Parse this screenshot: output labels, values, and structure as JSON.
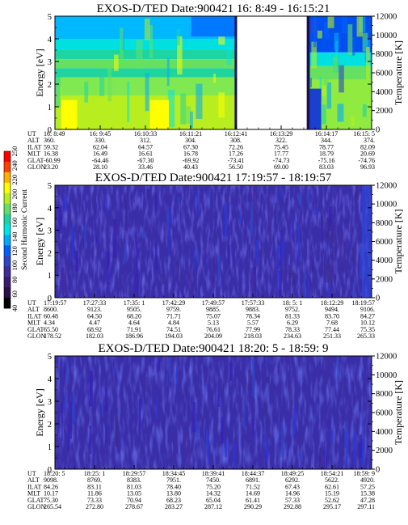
{
  "colors": {
    "gap": "#ffffff",
    "axis": "#000000",
    "scale": [
      "#000000",
      "#2a0f48",
      "#3d1a6e",
      "#3c2d9a",
      "#2f45c8",
      "#0060ff",
      "#00a8ff",
      "#00e4e4",
      "#20d4a0",
      "#66e060",
      "#b8ee20",
      "#ffff00",
      "#ffb000",
      "#ff4000",
      "#ff0000"
    ]
  },
  "colorbar": {
    "label": "Second Harmonic Current",
    "ticks": [
      "40",
      "60",
      "80",
      "100",
      "120",
      "140",
      "160",
      "180",
      "200",
      "220",
      "240",
      "250"
    ]
  },
  "chart_data": [
    {
      "type": "heatmap",
      "title": "EXOS-D/TED   Date:900421   16: 8:49 - 16:15:21",
      "ylabel": "Energy [eV]",
      "ylim": [
        0,
        5
      ],
      "yticks": [
        "0",
        "1",
        "2",
        "3",
        "4",
        "5"
      ],
      "y2label": "Temperature [K]",
      "y2lim": [
        0,
        12000
      ],
      "y2ticks": [
        "0",
        "2000",
        "4000",
        "6000",
        "8000",
        "10000",
        "12000"
      ],
      "data_gap": [
        0.575,
        0.795
      ],
      "ephemeris": {
        "row_labels": [
          "UT",
          "ALT",
          "ILAT",
          "MLT",
          "GLAT",
          "GLON"
        ],
        "columns": [
          [
            "16: 8:49",
            "360.",
            "59.32",
            "16.38",
            "-60.99",
            "23.20"
          ],
          [
            "16: 9:45",
            "330.",
            "62.04",
            "16.49",
            "-64.46",
            "28.10"
          ],
          [
            "16:10:33",
            "312.",
            "64.57",
            "16.61",
            "-67.30",
            "33.46"
          ],
          [
            "16:11:21",
            "304.",
            "67.30",
            "16.78",
            "-69.92",
            "40.43"
          ],
          [
            "16:12:41",
            "308.",
            "72.26",
            "17.26",
            "-73.41",
            "56.50"
          ],
          [
            "16:13:29",
            "322.",
            "75.45",
            "17.77",
            "-74.73",
            "69.00"
          ],
          [
            "16:14:17",
            "344.",
            "78.77",
            "18.79",
            "-75.16",
            "83.03"
          ],
          [
            "16:15: 5",
            "374.",
            "82.09",
            "20.69",
            "-74.76",
            "96.93"
          ]
        ]
      }
    },
    {
      "type": "heatmap",
      "title": "EXOS-D/TED   Date:900421   17:19:57 - 18:19:57",
      "ylabel": "Energy [eV]",
      "ylim": [
        0,
        5
      ],
      "yticks": [
        "0",
        "1",
        "2",
        "3",
        "4",
        "5"
      ],
      "y2label": "Temperature [K]",
      "y2lim": [
        0,
        12000
      ],
      "y2ticks": [
        "0",
        "2000",
        "4000",
        "6000",
        "8000",
        "10000",
        "12000"
      ],
      "ephemeris": {
        "row_labels": [
          "UT",
          "ALT",
          "ILAT",
          "MLT",
          "GLAT",
          "GLON"
        ],
        "columns": [
          [
            "17:19:57",
            "8600.",
            "60.48",
            "4.34",
            "65.50",
            "178.52"
          ],
          [
            "17:27:33",
            "9123.",
            "64.50",
            "4.47",
            "68.92",
            "182.03"
          ],
          [
            "17:35: 1",
            "9505.",
            "68.20",
            "4.64",
            "71.91",
            "186.96"
          ],
          [
            "17:42:29",
            "9759.",
            "71.71",
            "4.84",
            "74.51",
            "194.03"
          ],
          [
            "17:49:57",
            "9885.",
            "75.07",
            "5.13",
            "76.61",
            "204.09"
          ],
          [
            "17:57:33",
            "9883.",
            "78.34",
            "5.57",
            "77.99",
            "218.03"
          ],
          [
            "18: 5: 1",
            "9752.",
            "81.33",
            "6.29",
            "78.33",
            "234.63"
          ],
          [
            "18:12:29",
            "9494.",
            "83.70",
            "7.68",
            "77.44",
            "251.33"
          ],
          [
            "18:19:57",
            "9106.",
            "84.27",
            "10.12",
            "75.35",
            "265.33"
          ]
        ]
      }
    },
    {
      "type": "heatmap",
      "title": "EXOS-D/TED   Date:900421   18:20: 5 - 18:59: 9",
      "ylabel": "Energy [eV]",
      "ylim": [
        0,
        5
      ],
      "yticks": [
        "0",
        "1",
        "2",
        "3",
        "4",
        "5"
      ],
      "y2label": "Temperature [K]",
      "y2lim": [
        0,
        12000
      ],
      "y2ticks": [
        "0",
        "2000",
        "4000",
        "6000",
        "8000",
        "10000",
        "12000"
      ],
      "ephemeris": {
        "row_labels": [
          "UT",
          "ALT",
          "ILAT",
          "MLT",
          "GLAT",
          "GLON"
        ],
        "columns": [
          [
            "18:20: 5",
            "9098.",
            "84.26",
            "10.17",
            "75.30",
            "265.54"
          ],
          [
            "18:25: 1",
            "8769.",
            "83.11",
            "11.86",
            "73.33",
            "272.80"
          ],
          [
            "18:29:57",
            "8383.",
            "81.03",
            "13.05",
            "70.94",
            "278.67"
          ],
          [
            "18:34:45",
            "7951.",
            "78.40",
            "13.80",
            "68.23",
            "283.27"
          ],
          [
            "18:39:41",
            "7450.",
            "75.20",
            "14.32",
            "65.04",
            "287.12"
          ],
          [
            "18:44:37",
            "6891.",
            "71.52",
            "14.69",
            "61.41",
            "290.29"
          ],
          [
            "18:49:25",
            "6292.",
            "67.43",
            "14.96",
            "57.33",
            "292.88"
          ],
          [
            "18:54:21",
            "5622.",
            "62.61",
            "15.19",
            "52.62",
            "295.17"
          ],
          [
            "18:59: 9",
            "4920.",
            "57.25",
            "15.38",
            "47.28",
            "297.11"
          ]
        ]
      }
    }
  ]
}
